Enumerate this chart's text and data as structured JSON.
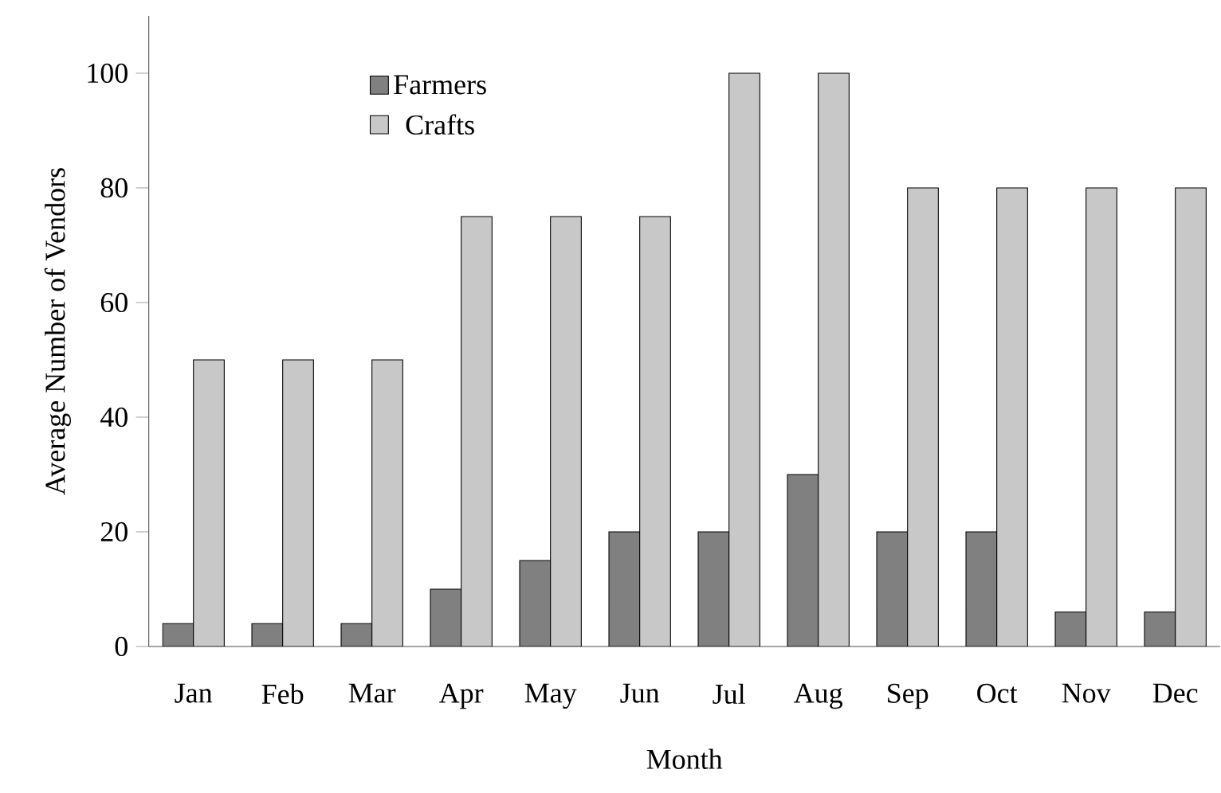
{
  "chart_data": {
    "type": "bar",
    "xlabel": "Month",
    "ylabel": "Average Number of Vendors",
    "categories": [
      "Jan",
      "Feb",
      "Mar",
      "Apr",
      "May",
      "Jun",
      "Jul",
      "Aug",
      "Sep",
      "Oct",
      "Nov",
      "Dec"
    ],
    "series": [
      {
        "name": "Farmers",
        "color": "#808080",
        "values": [
          4,
          4,
          4,
          10,
          15,
          20,
          20,
          30,
          20,
          20,
          6,
          6
        ]
      },
      {
        "name": "Crafts",
        "color": "#c8c8c8",
        "values": [
          50,
          50,
          50,
          75,
          75,
          75,
          100,
          100,
          80,
          80,
          80,
          80
        ]
      }
    ],
    "ylim": [
      0,
      110
    ],
    "yticks": [
      0,
      20,
      40,
      60,
      80,
      100
    ],
    "legend": "top left"
  }
}
